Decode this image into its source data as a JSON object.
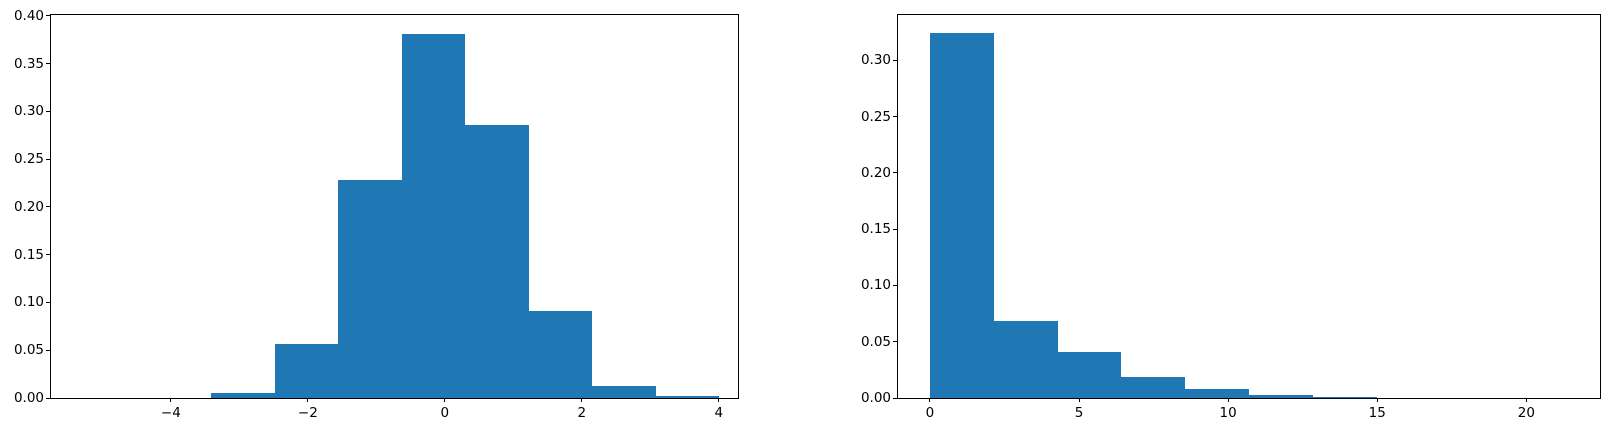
{
  "figure": {
    "background_color": "#ffffff",
    "text_color": "#000000",
    "spine_color": "#000000"
  },
  "chart_data": [
    {
      "id": "left",
      "type": "bar",
      "subtype": "histogram-density",
      "title": "",
      "xlabel": "",
      "ylabel": "",
      "bar_color": "#1f77b4",
      "bin_edges": [
        -3.41,
        -2.4825,
        -1.555,
        -0.6275,
        0.3,
        1.2275,
        2.155,
        3.0825,
        4.01
      ],
      "values": [
        0.005,
        0.057,
        0.228,
        0.381,
        0.286,
        0.091,
        0.013,
        0.002
      ],
      "xlim": [
        -5.75,
        4.28
      ],
      "ylim": [
        0,
        0.401
      ],
      "xticks": [
        -4,
        -2,
        0,
        2,
        4
      ],
      "xtick_labels": [
        "−4",
        "−2",
        "0",
        "2",
        "4"
      ],
      "yticks": [
        0,
        0.05,
        0.1,
        0.15,
        0.2,
        0.25,
        0.3,
        0.35,
        0.4
      ],
      "ytick_labels": [
        "0.00",
        "0.05",
        "0.10",
        "0.15",
        "0.20",
        "0.25",
        "0.30",
        "0.35",
        "0.40"
      ],
      "grid": false,
      "legend": null
    },
    {
      "id": "right",
      "type": "bar",
      "subtype": "histogram-density",
      "title": "",
      "xlabel": "",
      "ylabel": "",
      "bar_color": "#1f77b4",
      "bin_edges": [
        0,
        2.14,
        4.28,
        6.42,
        8.56,
        10.7,
        12.84,
        14.98,
        17.12,
        19.26,
        21.4
      ],
      "values": [
        0.324,
        0.068,
        0.041,
        0.0185,
        0.008,
        0.0025,
        0.001,
        0.0003,
        0.0001,
        0.0001
      ],
      "xlim": [
        -1.07,
        22.47
      ],
      "ylim": [
        0,
        0.3403
      ],
      "xticks": [
        0,
        5,
        10,
        15,
        20
      ],
      "xtick_labels": [
        "0",
        "5",
        "10",
        "15",
        "20"
      ],
      "yticks": [
        0,
        0.05,
        0.1,
        0.15,
        0.2,
        0.25,
        0.3
      ],
      "ytick_labels": [
        "0.00",
        "0.05",
        "0.10",
        "0.15",
        "0.20",
        "0.25",
        "0.30"
      ],
      "grid": false,
      "legend": null
    }
  ]
}
